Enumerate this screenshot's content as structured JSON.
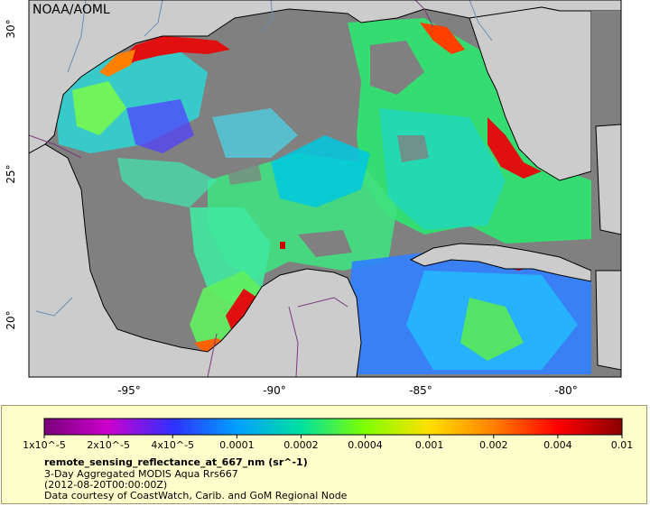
{
  "map": {
    "attribution": "NOAA/AOML",
    "lat_labels": [
      "30°",
      "25°",
      "20°"
    ],
    "lon_labels": [
      "-95°",
      "-90°",
      "-85°",
      "-80°"
    ],
    "colors": {
      "land": "#cccccc",
      "no_data": "#808080",
      "coast": "#000000",
      "rivers": "#6b8fb3",
      "borders": "#7a3a7a"
    }
  },
  "legend": {
    "tick_labels": [
      "1x10^-5",
      "2x10^-5",
      "4x10^-5",
      "0.0001",
      "0.0002",
      "0.0004",
      "0.001",
      "0.002",
      "0.004",
      "0.01"
    ],
    "colormap": [
      "#7a007a",
      "#cc00cc",
      "#3030ff",
      "#00a0ff",
      "#00e0a0",
      "#80ff00",
      "#ffe000",
      "#ff8000",
      "#ff0000",
      "#8a0000"
    ],
    "variable": "remote_sensing_reflectance_at_667_nm (sr^-1)",
    "product": "3-Day Aggregated MODIS Aqua Rrs667",
    "time": "(2012-08-20T00:00:00Z)",
    "credit": "Data courtesy of CoastWatch, Carib. and GoM Regional Node"
  }
}
